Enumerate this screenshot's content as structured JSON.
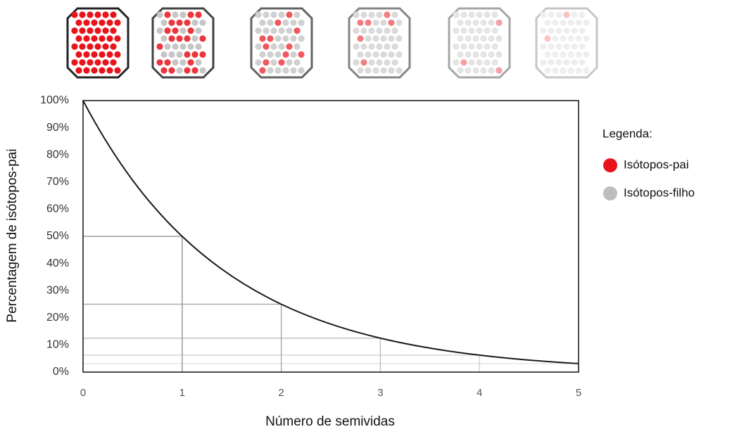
{
  "chart_data": {
    "type": "line",
    "x": [
      0,
      1,
      2,
      3,
      4,
      5
    ],
    "series": [
      {
        "name": "Isótopos-pai",
        "color": "#1a1a1a",
        "values": [
          100,
          50,
          25,
          12.5,
          6.25,
          3.125
        ]
      }
    ],
    "xlim": [
      0,
      5
    ],
    "xticks": [
      0,
      1,
      2,
      3,
      4,
      5
    ],
    "ylim": [
      0,
      100
    ],
    "yticks": [
      {
        "value": 0,
        "label": "0%"
      },
      {
        "value": 10,
        "label": "10%"
      },
      {
        "value": 20,
        "label": "20%"
      },
      {
        "value": 30,
        "label": "30%"
      },
      {
        "value": 40,
        "label": "40%"
      },
      {
        "value": 50,
        "label": "50%"
      },
      {
        "value": 60,
        "label": "60%"
      },
      {
        "value": 70,
        "label": "70%"
      },
      {
        "value": 80,
        "label": "80%"
      },
      {
        "value": 90,
        "label": "90%"
      },
      {
        "value": 100,
        "label": "100%"
      }
    ],
    "xlabel": "Número de semividas",
    "ylabel": "Percentagem de isótopos-pai",
    "grid": false,
    "legend": {
      "title": "Legenda:",
      "items": [
        {
          "name": "Isótopos-pai",
          "color": "#e8141c"
        },
        {
          "name": "Isótopos-filho",
          "color": "#bdbdbd"
        }
      ]
    }
  }
}
